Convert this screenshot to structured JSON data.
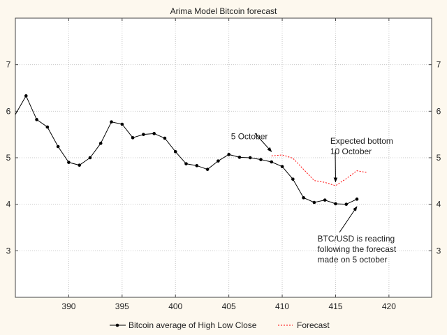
{
  "chart_data": {
    "type": "line",
    "title": "Arima Model Bitcoin forecast",
    "xlabel": "",
    "ylabel": "",
    "xlim": [
      385,
      424
    ],
    "ylim": [
      2,
      8
    ],
    "xticks": [
      390,
      395,
      400,
      405,
      410,
      415,
      420
    ],
    "yticks": [
      3,
      4,
      5,
      6,
      7
    ],
    "grid": true,
    "legend_placement": "bottom",
    "series": [
      {
        "name": "Bitcoin average of High Low Close",
        "style": "solid-with-markers",
        "color": "#000000",
        "x": [
          385,
          386,
          387,
          388,
          389,
          390,
          391,
          392,
          393,
          394,
          395,
          396,
          397,
          398,
          399,
          400,
          401,
          402,
          403,
          404,
          405,
          406,
          407,
          408,
          409,
          410,
          411,
          412,
          413,
          414,
          415,
          416,
          417
        ],
        "y": [
          5.93,
          6.33,
          5.82,
          5.66,
          5.24,
          4.9,
          4.84,
          5.0,
          5.31,
          5.77,
          5.72,
          5.43,
          5.5,
          5.52,
          5.42,
          5.13,
          4.87,
          4.83,
          4.75,
          4.93,
          5.07,
          5.01,
          5.0,
          4.96,
          4.91,
          4.81,
          4.54,
          4.14,
          4.04,
          4.09,
          4.01,
          4.0,
          4.11
        ]
      },
      {
        "name": "Forecast",
        "style": "dashed",
        "color": "#ff0000",
        "x": [
          409,
          410,
          411,
          412,
          413,
          414,
          415,
          416,
          417,
          418
        ],
        "y": [
          5.04,
          5.06,
          4.99,
          4.75,
          4.51,
          4.47,
          4.4,
          4.55,
          4.72,
          4.68
        ]
      }
    ],
    "annotations": [
      {
        "lines": [
          "5 October"
        ],
        "x": 405.2,
        "y": 5.4,
        "arrow_to": [
          409,
          5.13
        ]
      },
      {
        "lines": [
          "Expected bottom",
          "10 October"
        ],
        "x": 414.5,
        "y": 5.3,
        "arrow_to": [
          415,
          4.48
        ]
      },
      {
        "lines": [
          "BTC/USD is reacting",
          "following the forecast",
          "made on 5 october"
        ],
        "x": 413.3,
        "y": 3.2,
        "arrow_to": [
          417,
          3.95
        ]
      }
    ]
  }
}
